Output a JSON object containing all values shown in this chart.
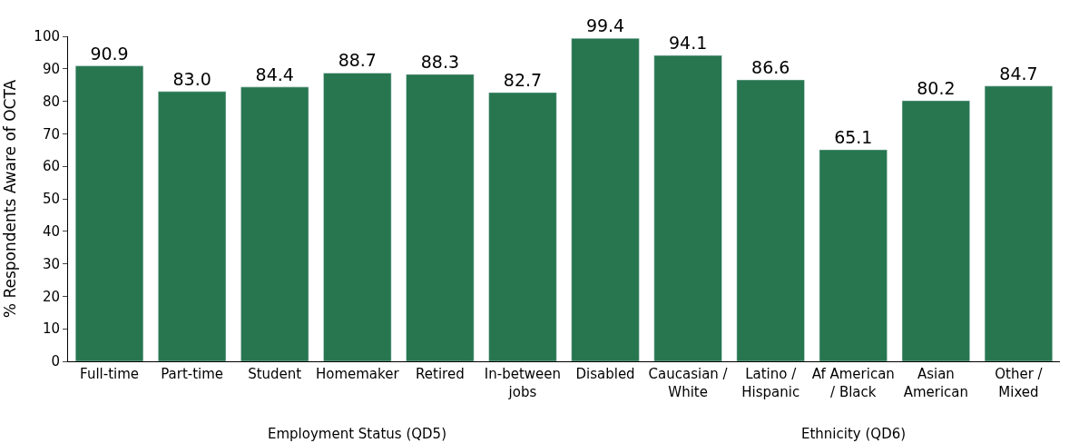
{
  "chart_data": {
    "type": "bar",
    "ylabel": "% Respondents Aware of OCTA",
    "categories": [
      "Full-time",
      "Part-time",
      "Student",
      "Homemaker",
      "Retired",
      "In-between jobs",
      "Disabled",
      "Caucasian / White",
      "Latino / Hispanic",
      "Af American / Black",
      "Asian American",
      "Other / Mixed"
    ],
    "values": [
      90.9,
      83.0,
      84.4,
      88.7,
      88.3,
      82.7,
      99.4,
      94.1,
      86.6,
      65.1,
      80.2,
      84.7
    ],
    "value_labels": [
      "90.9",
      "83.0",
      "84.4",
      "88.7",
      "88.3",
      "82.7",
      "99.4",
      "94.1",
      "86.6",
      "65.1",
      "80.2",
      "84.7"
    ],
    "color": "#27764f",
    "ylim": [
      0,
      100
    ],
    "yticks": [
      0,
      10,
      20,
      30,
      40,
      50,
      60,
      70,
      80,
      90,
      100
    ],
    "annotations": [
      "Employment Status (QD5)",
      "Ethnicity (QD6)"
    ]
  }
}
